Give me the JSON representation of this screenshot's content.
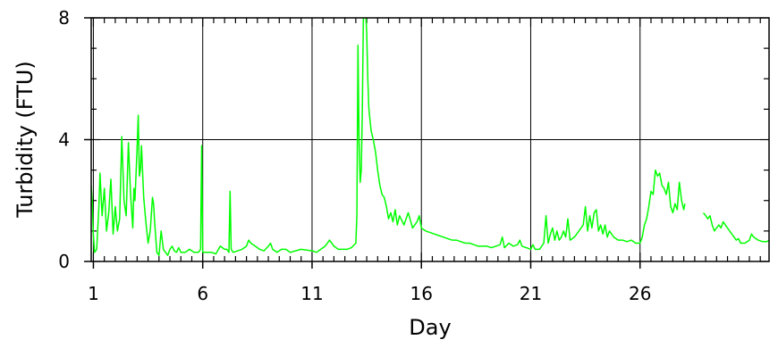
{
  "chart_data": {
    "type": "line",
    "xlabel": "Day",
    "ylabel": "Turbidity (FTU)",
    "xlim": [
      0.9,
      31.9
    ],
    "ylim": [
      0,
      8
    ],
    "xticks": [
      1,
      6,
      11,
      16,
      21,
      26
    ],
    "xtick_labels": [
      "1",
      "6",
      "11",
      "16",
      "21",
      "26"
    ],
    "yticks": [
      0,
      4,
      8
    ],
    "ytick_labels": [
      "0",
      "4",
      "8"
    ],
    "x_minor_step": 0.5,
    "y_minor_step": 1,
    "grid": true,
    "series": [
      {
        "color": "#00ff00",
        "segments": [
          [
            [
              0.9,
              2.5
            ],
            [
              0.95,
              2.0
            ],
            [
              1.0,
              0.9
            ],
            [
              1.05,
              0.3
            ],
            [
              1.15,
              0.4
            ],
            [
              1.25,
              1.8
            ],
            [
              1.3,
              2.9
            ],
            [
              1.4,
              1.5
            ],
            [
              1.5,
              2.4
            ],
            [
              1.6,
              1.0
            ],
            [
              1.7,
              1.6
            ],
            [
              1.8,
              2.7
            ],
            [
              1.9,
              0.9
            ],
            [
              2.0,
              1.8
            ],
            [
              2.1,
              1.0
            ],
            [
              2.2,
              1.4
            ],
            [
              2.3,
              4.1
            ],
            [
              2.4,
              2.0
            ],
            [
              2.5,
              1.5
            ],
            [
              2.6,
              3.9
            ],
            [
              2.7,
              2.2
            ],
            [
              2.8,
              1.1
            ],
            [
              2.85,
              2.4
            ],
            [
              2.9,
              2.0
            ],
            [
              3.0,
              3.7
            ],
            [
              3.05,
              4.8
            ],
            [
              3.1,
              2.8
            ],
            [
              3.15,
              3.0
            ],
            [
              3.2,
              3.8
            ],
            [
              3.3,
              2.1
            ],
            [
              3.4,
              1.3
            ],
            [
              3.5,
              0.6
            ],
            [
              3.6,
              1.0
            ],
            [
              3.7,
              2.1
            ],
            [
              3.75,
              1.9
            ],
            [
              3.8,
              1.3
            ],
            [
              3.9,
              0.3
            ],
            [
              4.0,
              0.2
            ],
            [
              4.1,
              1.0
            ],
            [
              4.2,
              0.4
            ],
            [
              4.3,
              0.3
            ],
            [
              4.4,
              0.2
            ],
            [
              4.5,
              0.4
            ],
            [
              4.6,
              0.5
            ],
            [
              4.7,
              0.35
            ],
            [
              4.8,
              0.3
            ],
            [
              4.9,
              0.45
            ],
            [
              5.0,
              0.3
            ],
            [
              5.2,
              0.3
            ],
            [
              5.4,
              0.4
            ],
            [
              5.6,
              0.3
            ],
            [
              5.8,
              0.3
            ],
            [
              5.9,
              0.4
            ],
            [
              5.95,
              3.8
            ],
            [
              6.0,
              0.3
            ],
            [
              6.2,
              0.3
            ],
            [
              6.4,
              0.3
            ],
            [
              6.6,
              0.25
            ],
            [
              6.8,
              0.5
            ],
            [
              7.0,
              0.4
            ],
            [
              7.1,
              0.4
            ],
            [
              7.2,
              0.3
            ],
            [
              7.25,
              2.3
            ],
            [
              7.3,
              0.4
            ],
            [
              7.4,
              0.3
            ],
            [
              7.6,
              0.35
            ],
            [
              7.8,
              0.4
            ],
            [
              8.0,
              0.5
            ],
            [
              8.1,
              0.7
            ],
            [
              8.2,
              0.6
            ],
            [
              8.4,
              0.5
            ],
            [
              8.6,
              0.4
            ],
            [
              8.8,
              0.35
            ],
            [
              9.0,
              0.5
            ],
            [
              9.1,
              0.6
            ],
            [
              9.2,
              0.4
            ],
            [
              9.4,
              0.3
            ],
            [
              9.6,
              0.4
            ],
            [
              9.8,
              0.4
            ],
            [
              10.0,
              0.3
            ],
            [
              10.5,
              0.4
            ],
            [
              11.0,
              0.35
            ],
            [
              11.2,
              0.3
            ],
            [
              11.4,
              0.4
            ],
            [
              11.6,
              0.5
            ],
            [
              11.8,
              0.7
            ],
            [
              11.9,
              0.6
            ],
            [
              12.0,
              0.5
            ],
            [
              12.2,
              0.4
            ],
            [
              12.4,
              0.4
            ],
            [
              12.6,
              0.4
            ],
            [
              12.8,
              0.45
            ],
            [
              13.0,
              0.6
            ],
            [
              13.05,
              1.5
            ],
            [
              13.1,
              7.1
            ],
            [
              13.15,
              4.0
            ],
            [
              13.2,
              2.6
            ],
            [
              13.25,
              3.0
            ],
            [
              13.3,
              5.0
            ],
            [
              13.35,
              8.2
            ],
            [
              13.4,
              8.6
            ],
            [
              13.45,
              8.2
            ],
            [
              13.5,
              7.5
            ],
            [
              13.55,
              6.0
            ],
            [
              13.6,
              5.0
            ],
            [
              13.7,
              4.3
            ],
            [
              13.8,
              4.0
            ],
            [
              13.9,
              3.6
            ],
            [
              14.0,
              3.0
            ],
            [
              14.1,
              2.5
            ],
            [
              14.2,
              2.2
            ],
            [
              14.3,
              2.1
            ],
            [
              14.4,
              1.8
            ],
            [
              14.5,
              1.4
            ],
            [
              14.6,
              1.6
            ],
            [
              14.7,
              1.3
            ],
            [
              14.8,
              1.7
            ],
            [
              14.9,
              1.2
            ],
            [
              15.0,
              1.5
            ],
            [
              15.2,
              1.2
            ],
            [
              15.4,
              1.6
            ],
            [
              15.6,
              1.1
            ],
            [
              15.8,
              1.3
            ],
            [
              15.9,
              1.5
            ],
            [
              16.0,
              1.1
            ],
            [
              16.2,
              1.0
            ],
            [
              16.4,
              0.95
            ],
            [
              16.6,
              0.9
            ],
            [
              16.8,
              0.85
            ],
            [
              17.0,
              0.8
            ],
            [
              17.2,
              0.75
            ],
            [
              17.4,
              0.7
            ],
            [
              17.6,
              0.7
            ],
            [
              17.8,
              0.65
            ],
            [
              18.0,
              0.6
            ],
            [
              18.2,
              0.6
            ],
            [
              18.4,
              0.55
            ],
            [
              18.6,
              0.5
            ],
            [
              18.8,
              0.5
            ],
            [
              19.0,
              0.5
            ],
            [
              19.2,
              0.45
            ],
            [
              19.4,
              0.5
            ],
            [
              19.6,
              0.55
            ],
            [
              19.7,
              0.8
            ],
            [
              19.8,
              0.45
            ],
            [
              20.0,
              0.6
            ],
            [
              20.2,
              0.5
            ],
            [
              20.4,
              0.55
            ],
            [
              20.5,
              0.7
            ],
            [
              20.6,
              0.5
            ],
            [
              20.8,
              0.45
            ],
            [
              21.0,
              0.4
            ],
            [
              21.1,
              0.55
            ],
            [
              21.2,
              0.4
            ],
            [
              21.4,
              0.4
            ],
            [
              21.6,
              0.6
            ],
            [
              21.7,
              1.5
            ],
            [
              21.8,
              0.6
            ],
            [
              21.9,
              0.9
            ],
            [
              22.0,
              1.1
            ],
            [
              22.1,
              0.7
            ],
            [
              22.2,
              1.0
            ],
            [
              22.3,
              0.7
            ],
            [
              22.4,
              0.8
            ],
            [
              22.5,
              1.0
            ],
            [
              22.6,
              0.8
            ],
            [
              22.7,
              1.4
            ],
            [
              22.8,
              0.7
            ],
            [
              23.0,
              0.8
            ],
            [
              23.2,
              1.0
            ],
            [
              23.4,
              1.2
            ],
            [
              23.5,
              1.8
            ],
            [
              23.6,
              1.0
            ],
            [
              23.7,
              1.5
            ],
            [
              23.8,
              1.1
            ],
            [
              23.9,
              1.6
            ],
            [
              24.0,
              1.7
            ],
            [
              24.1,
              1.0
            ],
            [
              24.2,
              1.2
            ],
            [
              24.3,
              0.9
            ],
            [
              24.4,
              1.2
            ],
            [
              24.5,
              0.8
            ],
            [
              24.6,
              1.0
            ],
            [
              24.8,
              0.8
            ],
            [
              25.0,
              0.7
            ],
            [
              25.2,
              0.7
            ],
            [
              25.4,
              0.65
            ],
            [
              25.6,
              0.7
            ],
            [
              25.8,
              0.6
            ],
            [
              26.0,
              0.6
            ],
            [
              26.1,
              0.8
            ],
            [
              26.2,
              1.2
            ],
            [
              26.3,
              1.4
            ],
            [
              26.4,
              1.8
            ],
            [
              26.5,
              2.3
            ],
            [
              26.6,
              2.2
            ],
            [
              26.7,
              3.0
            ],
            [
              26.8,
              2.8
            ],
            [
              26.9,
              2.9
            ],
            [
              27.0,
              2.5
            ],
            [
              27.1,
              2.4
            ],
            [
              27.2,
              2.2
            ],
            [
              27.3,
              2.6
            ],
            [
              27.4,
              1.8
            ],
            [
              27.5,
              1.6
            ],
            [
              27.6,
              1.9
            ],
            [
              27.7,
              1.7
            ],
            [
              27.8,
              2.6
            ],
            [
              27.9,
              2.0
            ],
            [
              28.0,
              1.7
            ],
            [
              28.05,
              1.9
            ]
          ],
          [
            [
              28.9,
              1.6
            ],
            [
              29.0,
              1.5
            ],
            [
              29.1,
              1.4
            ],
            [
              29.2,
              1.5
            ],
            [
              29.3,
              1.2
            ],
            [
              29.4,
              1.0
            ],
            [
              29.5,
              1.1
            ],
            [
              29.6,
              1.2
            ],
            [
              29.7,
              1.1
            ],
            [
              29.8,
              1.3
            ],
            [
              29.9,
              1.2
            ],
            [
              30.0,
              1.1
            ],
            [
              30.1,
              1.0
            ],
            [
              30.2,
              0.9
            ],
            [
              30.3,
              0.8
            ],
            [
              30.4,
              0.7
            ],
            [
              30.5,
              0.75
            ],
            [
              30.6,
              0.6
            ],
            [
              30.8,
              0.6
            ],
            [
              31.0,
              0.7
            ],
            [
              31.1,
              0.9
            ],
            [
              31.2,
              0.8
            ],
            [
              31.4,
              0.7
            ],
            [
              31.6,
              0.65
            ],
            [
              31.8,
              0.65
            ],
            [
              31.9,
              0.7
            ]
          ]
        ]
      }
    ]
  }
}
